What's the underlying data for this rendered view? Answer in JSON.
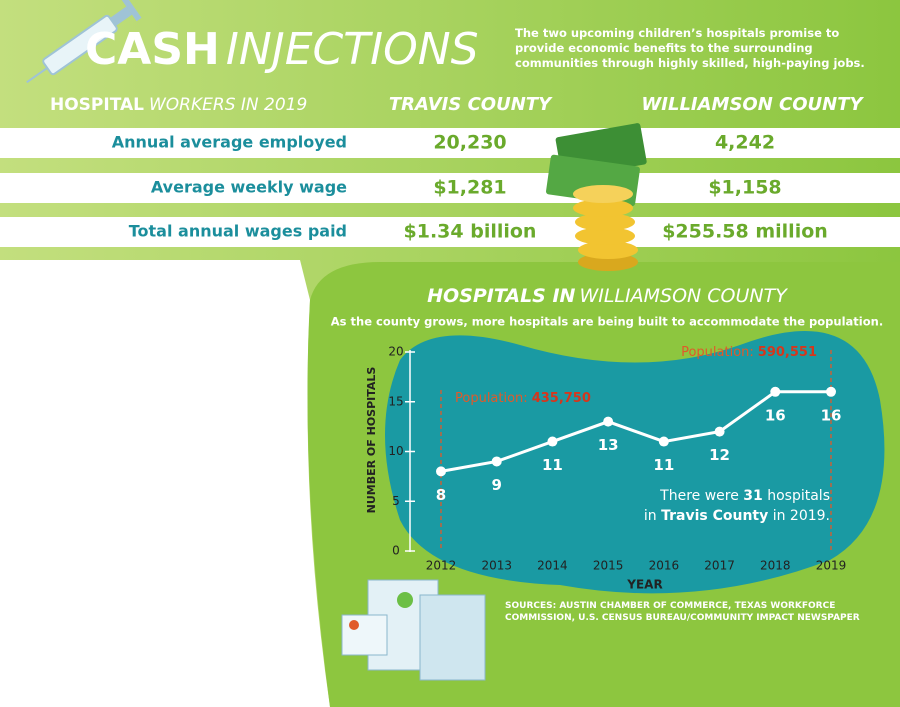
{
  "header": {
    "title_bold": "CASH",
    "title_light": "INJECTIONS",
    "intro": "The two upcoming children’s hospitals promise to provide economic benefits to the surrounding communities through highly skilled, high-paying jobs."
  },
  "table": {
    "heading_bold": "HOSPITAL",
    "heading_light": "WORKERS IN 2019",
    "columns": [
      "TRAVIS COUNTY",
      "WILLIAMSON COUNTY"
    ],
    "rows": [
      [
        "Annual average employed",
        "20,230",
        "4,242"
      ],
      [
        "Average weekly wage",
        "$1,281",
        "$1,158"
      ],
      [
        "Total annual wages paid",
        "$1.34 billion",
        "$255.58 million"
      ]
    ]
  },
  "chart_data": {
    "type": "line",
    "title_bold": "HOSPITALS IN",
    "title_light": "WILLIAMSON COUNTY",
    "subtitle": "As the county grows, more hospitals are being built to accommodate the population.",
    "y_label": "NUMBER OF HOSPITALS",
    "x_label": "YEAR",
    "categories": [
      "2012",
      "2013",
      "2014",
      "2015",
      "2016",
      "2017",
      "2018",
      "2019"
    ],
    "values": [
      8,
      9,
      11,
      13,
      11,
      12,
      16,
      16
    ],
    "color": "#ffffff",
    "ylim": [
      0,
      20
    ],
    "yticks": [
      0,
      5,
      10,
      15,
      20
    ],
    "annotations": [
      {
        "label": "Population:",
        "value": "435,750"
      },
      {
        "label": "Population:",
        "value": "590,551"
      }
    ],
    "note": [
      "There were",
      "31",
      "hospitals",
      "in",
      "Travis County",
      "in 2019."
    ]
  },
  "sources": "SOURCES: AUSTIN CHAMBER OF COMMERCE, TEXAS WORKFORCE COMMISSION, U.S. CENSUS BUREAU/COMMUNITY IMPACT NEWSPAPER"
}
